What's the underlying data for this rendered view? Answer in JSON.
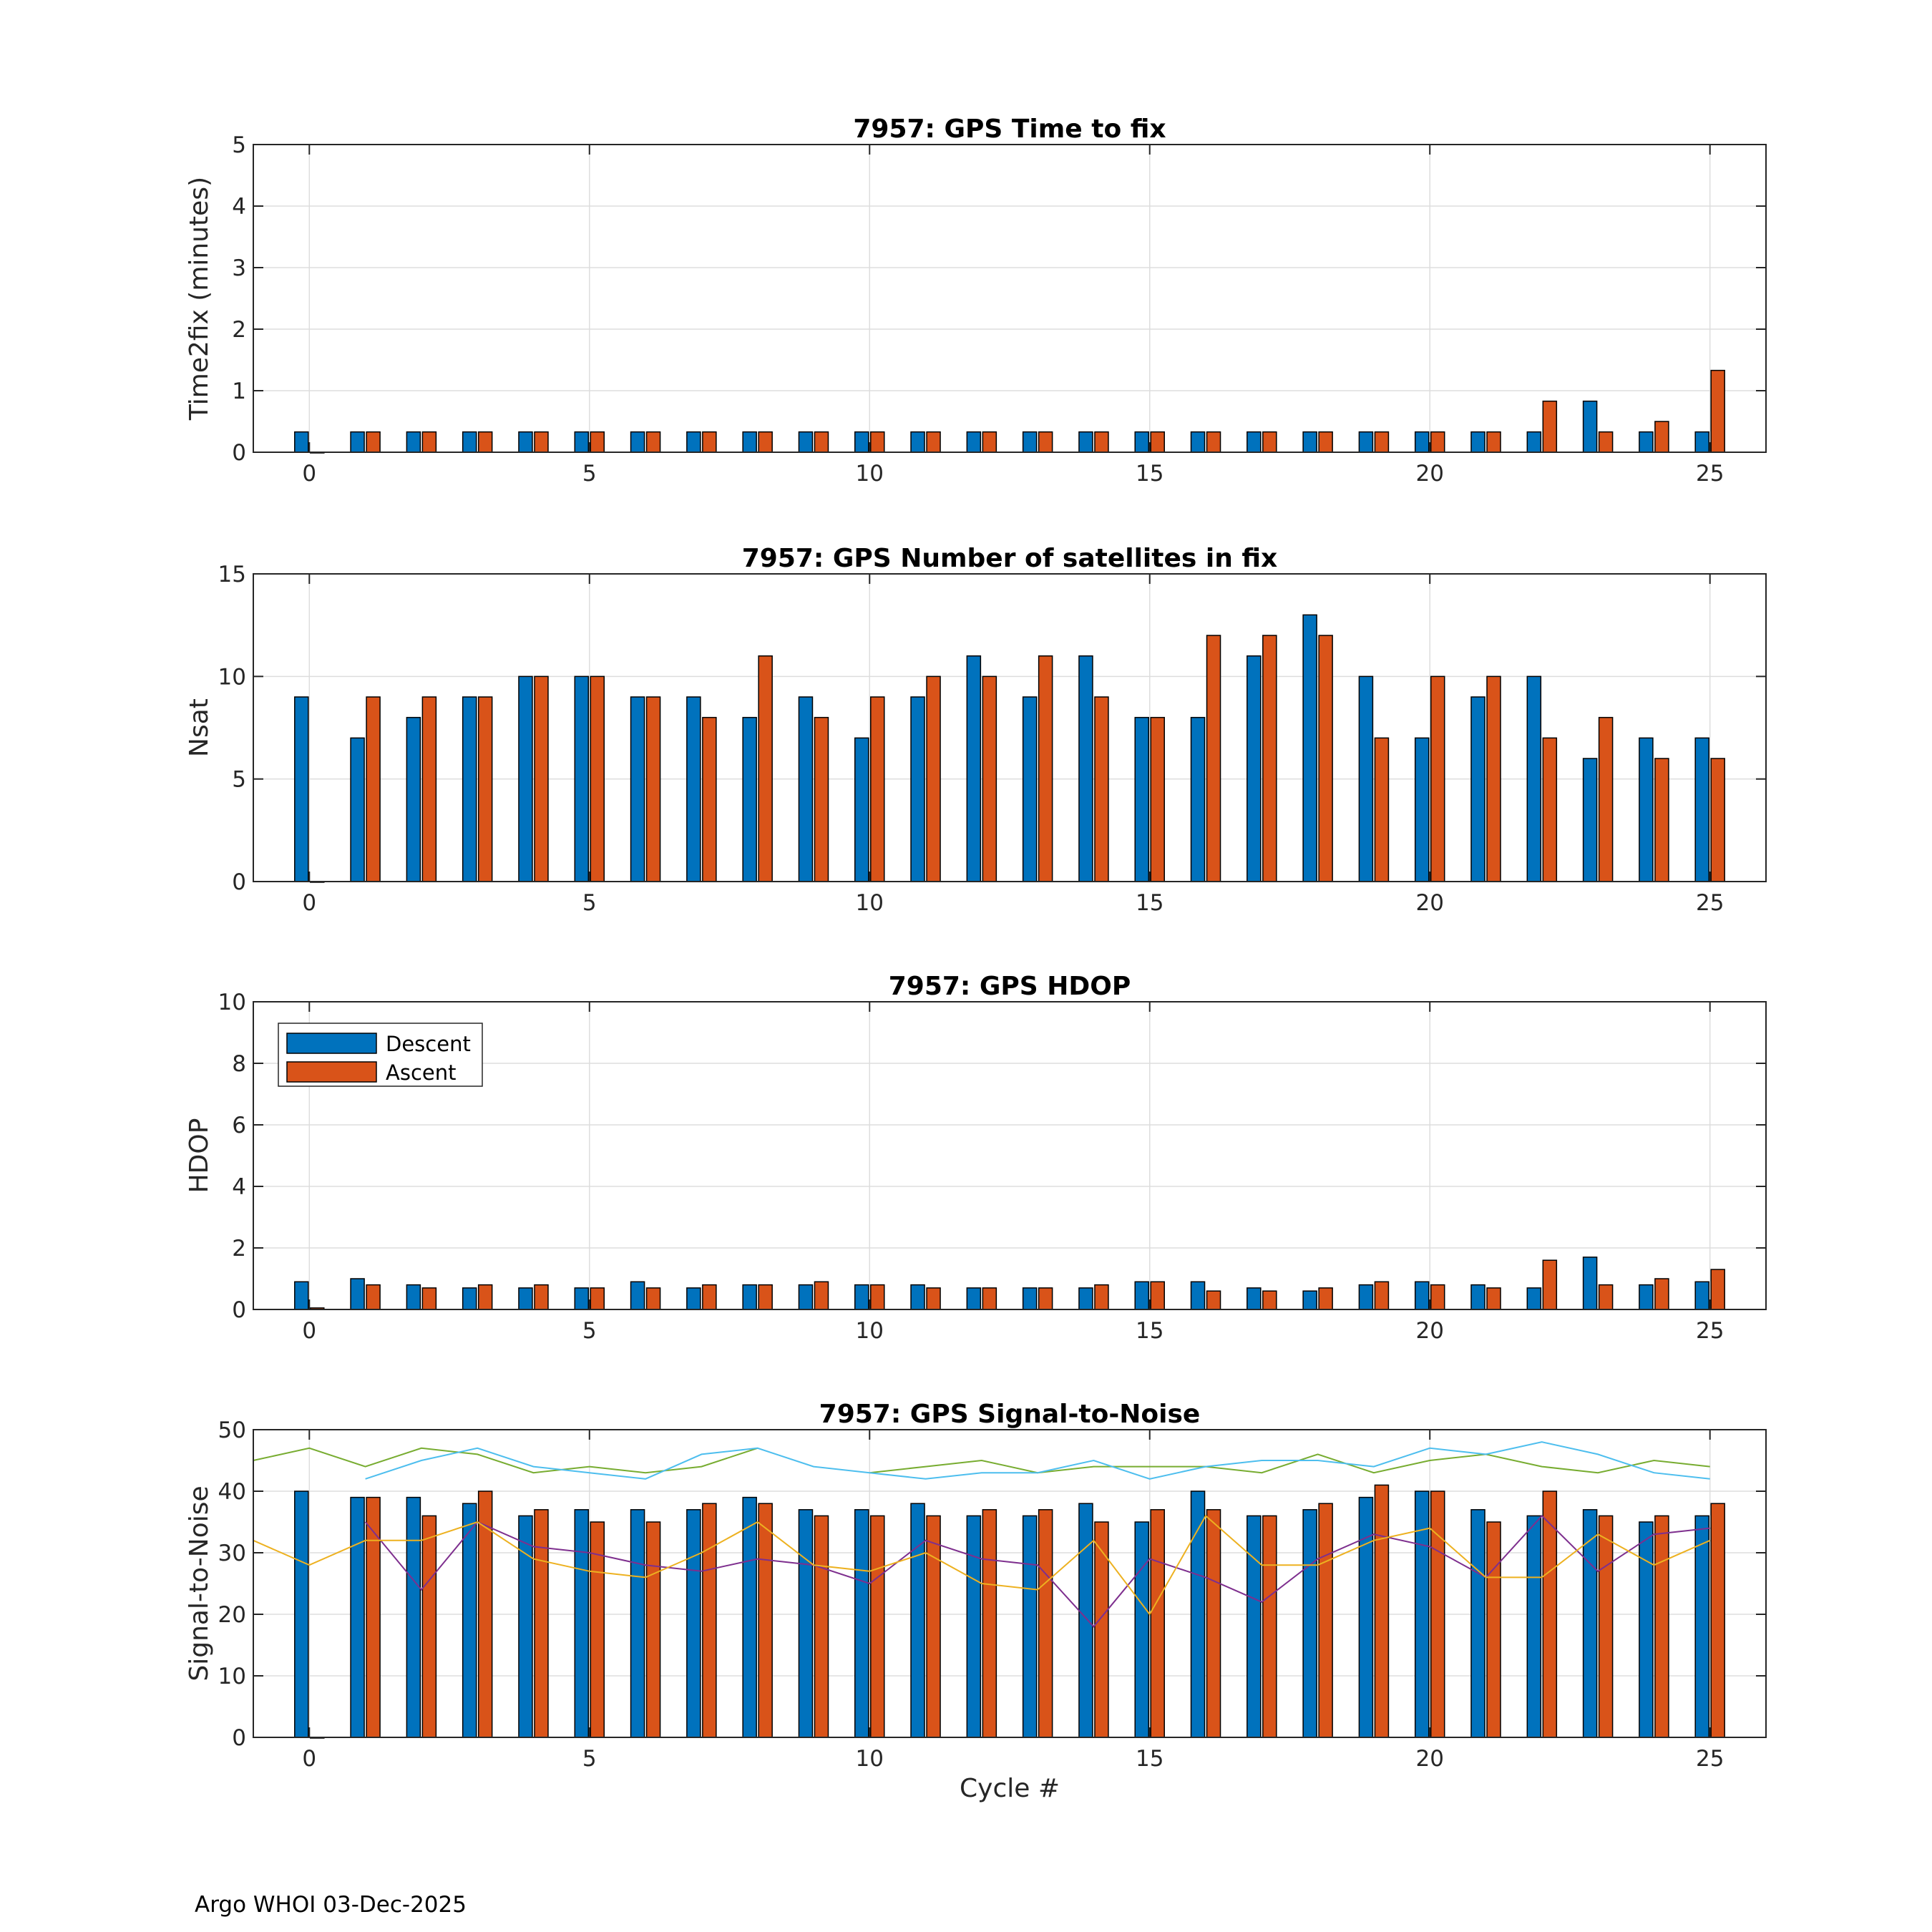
{
  "footer": "Argo WHOI 03-Dec-2025",
  "colors": {
    "descent": "#0072BD",
    "ascent": "#D95319",
    "grid": "#dddddd",
    "axis": "#262626"
  },
  "chart_data": [
    {
      "type": "bar",
      "title": "7957: GPS Time to fix",
      "xlabel": "",
      "ylabel": "Time2fix (minutes)",
      "xlim": [
        -1,
        26
      ],
      "ylim": [
        0,
        5
      ],
      "yticks": [
        0,
        1,
        2,
        3,
        4,
        5
      ],
      "xticks": [
        0,
        5,
        10,
        15,
        20,
        25
      ],
      "x": [
        0,
        1,
        2,
        3,
        4,
        5,
        6,
        7,
        8,
        9,
        10,
        11,
        12,
        13,
        14,
        15,
        16,
        17,
        18,
        19,
        20,
        21,
        22,
        23,
        24,
        25
      ],
      "series": [
        {
          "name": "Descent",
          "values": [
            0.33,
            0.33,
            0.33,
            0.33,
            0.33,
            0.33,
            0.33,
            0.33,
            0.33,
            0.33,
            0.33,
            0.33,
            0.33,
            0.33,
            0.33,
            0.33,
            0.33,
            0.33,
            0.33,
            0.33,
            0.33,
            0.33,
            0.33,
            0.83,
            0.33,
            0.33
          ]
        },
        {
          "name": "Ascent",
          "values": [
            0,
            0.33,
            0.33,
            0.33,
            0.33,
            0.33,
            0.33,
            0.33,
            0.33,
            0.33,
            0.33,
            0.33,
            0.33,
            0.33,
            0.33,
            0.33,
            0.33,
            0.33,
            0.33,
            0.33,
            0.33,
            0.33,
            0.83,
            0.33,
            0.5,
            1.33
          ]
        }
      ],
      "lines": []
    },
    {
      "type": "bar",
      "title": "7957: GPS Number of satellites in fix",
      "xlabel": "",
      "ylabel": "Nsat",
      "xlim": [
        -1,
        26
      ],
      "ylim": [
        0,
        15
      ],
      "yticks": [
        0,
        5,
        10,
        15
      ],
      "xticks": [
        0,
        5,
        10,
        15,
        20,
        25
      ],
      "x": [
        0,
        1,
        2,
        3,
        4,
        5,
        6,
        7,
        8,
        9,
        10,
        11,
        12,
        13,
        14,
        15,
        16,
        17,
        18,
        19,
        20,
        21,
        22,
        23,
        24,
        25
      ],
      "series": [
        {
          "name": "Descent",
          "values": [
            9,
            7,
            8,
            9,
            10,
            10,
            9,
            9,
            8,
            9,
            7,
            9,
            11,
            9,
            11,
            8,
            8,
            11,
            13,
            10,
            7,
            9,
            10,
            6,
            7,
            7
          ]
        },
        {
          "name": "Ascent",
          "values": [
            0,
            9,
            9,
            9,
            10,
            10,
            9,
            8,
            11,
            8,
            9,
            10,
            10,
            11,
            9,
            8,
            12,
            12,
            12,
            7,
            10,
            10,
            7,
            8,
            6,
            6
          ]
        }
      ],
      "lines": []
    },
    {
      "type": "bar",
      "title": "7957: GPS HDOP",
      "xlabel": "",
      "ylabel": "HDOP",
      "xlim": [
        -1,
        26
      ],
      "ylim": [
        0,
        10
      ],
      "yticks": [
        0,
        2,
        4,
        6,
        8,
        10
      ],
      "xticks": [
        0,
        5,
        10,
        15,
        20,
        25
      ],
      "legend": {
        "position": "top-left",
        "entries": [
          "Descent",
          "Ascent"
        ]
      },
      "x": [
        0,
        1,
        2,
        3,
        4,
        5,
        6,
        7,
        8,
        9,
        10,
        11,
        12,
        13,
        14,
        15,
        16,
        17,
        18,
        19,
        20,
        21,
        22,
        23,
        24,
        25
      ],
      "series": [
        {
          "name": "Descent",
          "values": [
            0.9,
            1.0,
            0.8,
            0.7,
            0.7,
            0.7,
            0.9,
            0.7,
            0.8,
            0.8,
            0.8,
            0.8,
            0.7,
            0.7,
            0.7,
            0.9,
            0.9,
            0.7,
            0.6,
            0.8,
            0.9,
            0.8,
            0.7,
            1.7,
            0.8,
            0.9
          ]
        },
        {
          "name": "Ascent",
          "values": [
            0.05,
            0.8,
            0.7,
            0.8,
            0.8,
            0.7,
            0.7,
            0.8,
            0.8,
            0.9,
            0.8,
            0.7,
            0.7,
            0.7,
            0.8,
            0.9,
            0.6,
            0.6,
            0.7,
            0.9,
            0.8,
            0.7,
            1.6,
            0.8,
            1.0,
            1.3
          ]
        }
      ],
      "lines": []
    },
    {
      "type": "bar",
      "title": "7957: GPS Signal-to-Noise",
      "xlabel": "Cycle #",
      "ylabel": "Signal-to-Noise",
      "xlim": [
        -1,
        26
      ],
      "ylim": [
        0,
        50
      ],
      "yticks": [
        0,
        10,
        20,
        30,
        40,
        50
      ],
      "xticks": [
        0,
        5,
        10,
        15,
        20,
        25
      ],
      "x": [
        0,
        1,
        2,
        3,
        4,
        5,
        6,
        7,
        8,
        9,
        10,
        11,
        12,
        13,
        14,
        15,
        16,
        17,
        18,
        19,
        20,
        21,
        22,
        23,
        24,
        25
      ],
      "series": [
        {
          "name": "Descent",
          "values": [
            40,
            39,
            39,
            38,
            36,
            37,
            37,
            37,
            39,
            37,
            37,
            38,
            36,
            36,
            38,
            35,
            40,
            36,
            37,
            39,
            40,
            37,
            36,
            37,
            35,
            36
          ]
        },
        {
          "name": "Ascent",
          "values": [
            0,
            39,
            36,
            40,
            37,
            35,
            35,
            38,
            38,
            36,
            36,
            36,
            37,
            37,
            35,
            37,
            37,
            36,
            38,
            41,
            40,
            35,
            40,
            36,
            36,
            38
          ]
        }
      ],
      "lines": [
        {
          "name": "green",
          "color": "#77AC30",
          "x": [
            -1,
            0,
            1,
            2,
            3,
            4,
            5,
            6,
            7,
            8,
            9,
            10,
            11,
            12,
            13,
            14,
            15,
            16,
            17,
            18,
            19,
            20,
            21,
            22,
            23,
            24,
            25
          ],
          "values": [
            45,
            47,
            44,
            47,
            46,
            43,
            44,
            43,
            44,
            47,
            null,
            43,
            44,
            45,
            43,
            44,
            44,
            44,
            43,
            46,
            43,
            45,
            46,
            44,
            43,
            45,
            44
          ]
        },
        {
          "name": "cyan",
          "color": "#4DBEEE",
          "x": [
            1,
            2,
            3,
            4,
            5,
            6,
            7,
            8,
            9,
            10,
            11,
            12,
            13,
            14,
            15,
            16,
            17,
            18,
            19,
            20,
            21,
            22,
            23,
            24,
            25
          ],
          "values": [
            42,
            45,
            47,
            44,
            43,
            42,
            46,
            47,
            44,
            43,
            42,
            43,
            43,
            45,
            42,
            44,
            45,
            45,
            44,
            47,
            46,
            48,
            46,
            43,
            42
          ]
        },
        {
          "name": "purple",
          "color": "#7E2F8E",
          "x": [
            1,
            2,
            3,
            4,
            5,
            6,
            7,
            8,
            9,
            10,
            11,
            12,
            13,
            14,
            15,
            16,
            17,
            18,
            19,
            20,
            21,
            22,
            23,
            24,
            25
          ],
          "values": [
            35,
            24,
            35,
            31,
            30,
            28,
            27,
            29,
            28,
            25,
            32,
            29,
            28,
            18,
            29,
            26,
            22,
            29,
            33,
            31,
            26,
            36,
            27,
            33,
            34
          ]
        },
        {
          "name": "orange",
          "color": "#EDB120",
          "x": [
            -1,
            0,
            1,
            2,
            3,
            4,
            5,
            6,
            7,
            8,
            9,
            10,
            11,
            12,
            13,
            14,
            15,
            16,
            17,
            18,
            19,
            20,
            21,
            22,
            23,
            24,
            25
          ],
          "values": [
            32,
            28,
            32,
            32,
            35,
            29,
            27,
            26,
            30,
            35,
            28,
            27,
            30,
            25,
            24,
            32,
            20,
            36,
            28,
            28,
            32,
            34,
            26,
            26,
            33,
            28,
            32
          ]
        }
      ]
    }
  ]
}
